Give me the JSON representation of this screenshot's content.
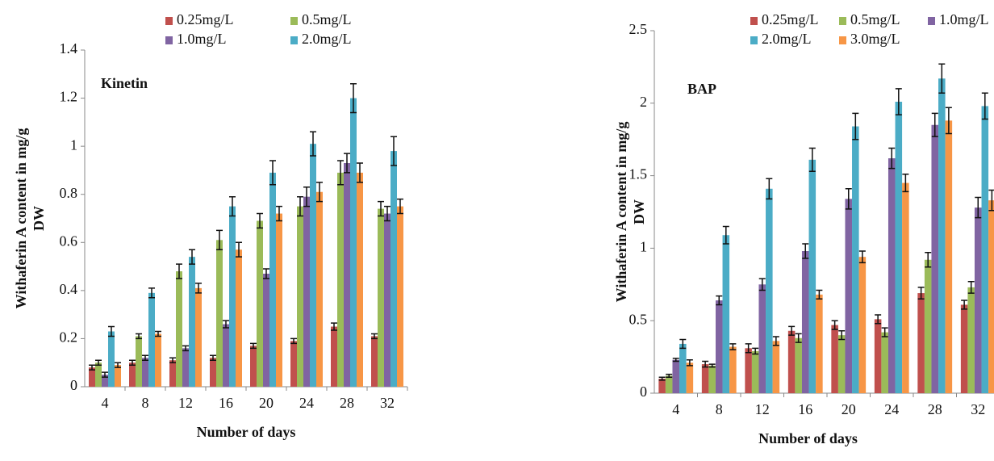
{
  "chart_data": [
    {
      "type": "bar",
      "annotation": "Kinetin",
      "x_label": "Number of days",
      "y_label": [
        "Withaferin A content in mg/g",
        "DW"
      ],
      "categories": [
        "4",
        "8",
        "12",
        "16",
        "20",
        "24",
        "28",
        "32"
      ],
      "ylim": [
        0,
        1.4
      ],
      "yticks": [
        0,
        0.2,
        0.4,
        0.6,
        0.8,
        1,
        1.2,
        1.4
      ],
      "series": [
        {
          "name": "0.25mg/L",
          "color": "#c0504d",
          "values": [
            0.08,
            0.1,
            0.11,
            0.12,
            0.17,
            0.19,
            0.25,
            0.21
          ],
          "errors": [
            0.01,
            0.01,
            0.01,
            0.01,
            0.01,
            0.01,
            0.015,
            0.01
          ]
        },
        {
          "name": "0.5mg/L",
          "color": "#9bbb59",
          "values": [
            0.1,
            0.21,
            0.48,
            0.61,
            0.69,
            0.75,
            0.89,
            0.74
          ],
          "errors": [
            0.01,
            0.01,
            0.03,
            0.04,
            0.03,
            0.04,
            0.05,
            0.03
          ]
        },
        {
          "name": "1.0mg/L",
          "color": "#8064a2",
          "values": [
            0.05,
            0.12,
            0.16,
            0.26,
            0.47,
            0.79,
            0.93,
            0.72
          ],
          "errors": [
            0.01,
            0.01,
            0.01,
            0.015,
            0.02,
            0.04,
            0.04,
            0.03
          ]
        },
        {
          "name": "2.0mg/L",
          "color": "#4bacc6",
          "values": [
            0.23,
            0.39,
            0.54,
            0.75,
            0.89,
            1.01,
            1.2,
            0.98
          ],
          "errors": [
            0.02,
            0.02,
            0.03,
            0.04,
            0.05,
            0.05,
            0.06,
            0.06
          ]
        },
        {
          "color": "#f79646",
          "values": [
            0.09,
            0.22,
            0.41,
            0.57,
            0.72,
            0.81,
            0.89,
            0.75
          ],
          "errors": [
            0.01,
            0.01,
            0.02,
            0.03,
            0.03,
            0.04,
            0.04,
            0.03
          ]
        }
      ]
    },
    {
      "type": "bar",
      "annotation": "BAP",
      "x_label": "Number of days",
      "y_label": [
        "Withaferin A content in mg/g",
        "DW"
      ],
      "categories": [
        "4",
        "8",
        "12",
        "16",
        "20",
        "24",
        "28",
        "32"
      ],
      "ylim": [
        0,
        2.5
      ],
      "yticks": [
        0,
        0.5,
        1,
        1.5,
        2,
        2.5
      ],
      "series": [
        {
          "name": "0.25mg/L",
          "color": "#c0504d",
          "values": [
            0.1,
            0.2,
            0.31,
            0.43,
            0.47,
            0.51,
            0.69,
            0.61
          ],
          "errors": [
            0.01,
            0.02,
            0.03,
            0.03,
            0.03,
            0.03,
            0.04,
            0.03
          ]
        },
        {
          "name": "0.5mg/L",
          "color": "#9bbb59",
          "values": [
            0.12,
            0.19,
            0.29,
            0.38,
            0.4,
            0.42,
            0.92,
            0.73
          ],
          "errors": [
            0.01,
            0.01,
            0.02,
            0.03,
            0.03,
            0.03,
            0.05,
            0.04
          ]
        },
        {
          "name": "1.0mg/L",
          "color": "#8064a2",
          "values": [
            0.23,
            0.64,
            0.75,
            0.98,
            1.34,
            1.62,
            1.85,
            1.28
          ],
          "errors": [
            0.01,
            0.03,
            0.04,
            0.05,
            0.07,
            0.07,
            0.08,
            0.07
          ]
        },
        {
          "name": "2.0mg/L",
          "color": "#4bacc6",
          "values": [
            0.34,
            1.09,
            1.41,
            1.61,
            1.84,
            2.01,
            2.17,
            1.98
          ],
          "errors": [
            0.03,
            0.06,
            0.07,
            0.08,
            0.09,
            0.09,
            0.1,
            0.09
          ]
        },
        {
          "name": "3.0mg/L",
          "color": "#f79646",
          "values": [
            0.21,
            0.32,
            0.36,
            0.68,
            0.94,
            1.45,
            1.88,
            1.33
          ],
          "errors": [
            0.02,
            0.02,
            0.03,
            0.03,
            0.04,
            0.06,
            0.09,
            0.07
          ]
        }
      ]
    }
  ]
}
